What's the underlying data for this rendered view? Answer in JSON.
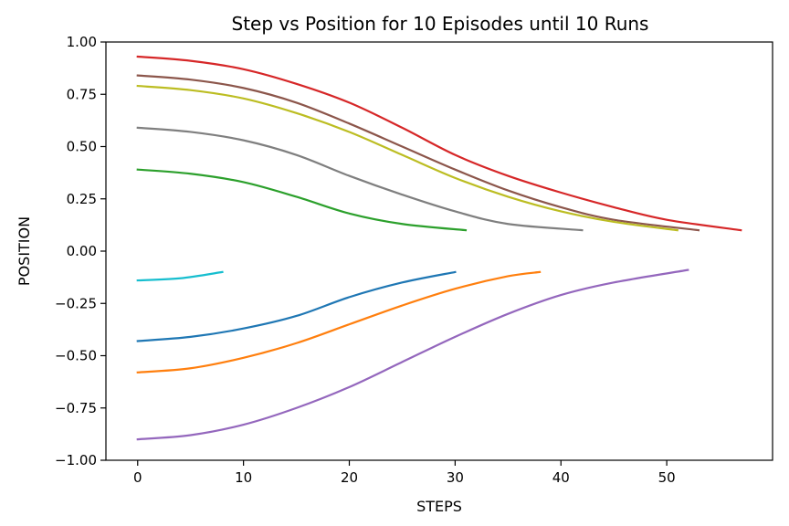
{
  "chart_data": {
    "type": "line",
    "title": "Step vs Position for 10 Episodes until 10 Runs",
    "xlabel": "STEPS",
    "ylabel": "POSITION",
    "xlim": [
      -3,
      60
    ],
    "ylim": [
      -1.0,
      1.0
    ],
    "xticks": [
      0,
      10,
      20,
      30,
      40,
      50
    ],
    "yticks": [
      -1.0,
      -0.75,
      -0.5,
      -0.25,
      0.0,
      0.25,
      0.5,
      0.75,
      1.0
    ],
    "ytick_labels": [
      "−1.00",
      "−0.75",
      "−0.50",
      "−0.25",
      "0.00",
      "0.25",
      "0.50",
      "0.75",
      "1.00"
    ],
    "grid": false,
    "legend": "none",
    "series": [
      {
        "color": "#1f77b4",
        "x": [
          0,
          5,
          10,
          15,
          20,
          25,
          30
        ],
        "y": [
          -0.43,
          -0.41,
          -0.37,
          -0.31,
          -0.22,
          -0.15,
          -0.1
        ]
      },
      {
        "color": "#ff7f0e",
        "x": [
          0,
          5,
          10,
          15,
          20,
          25,
          30,
          35,
          38
        ],
        "y": [
          -0.58,
          -0.56,
          -0.51,
          -0.44,
          -0.35,
          -0.26,
          -0.18,
          -0.12,
          -0.1
        ]
      },
      {
        "color": "#2ca02c",
        "x": [
          0,
          5,
          10,
          15,
          20,
          25,
          31
        ],
        "y": [
          0.39,
          0.37,
          0.33,
          0.26,
          0.18,
          0.13,
          0.1
        ]
      },
      {
        "color": "#d62728",
        "x": [
          0,
          5,
          10,
          15,
          20,
          25,
          30,
          35,
          40,
          45,
          50,
          57
        ],
        "y": [
          0.93,
          0.91,
          0.87,
          0.8,
          0.71,
          0.59,
          0.46,
          0.36,
          0.28,
          0.21,
          0.15,
          0.1
        ]
      },
      {
        "color": "#9467bd",
        "x": [
          0,
          5,
          10,
          15,
          20,
          25,
          30,
          35,
          40,
          45,
          52
        ],
        "y": [
          -0.9,
          -0.88,
          -0.83,
          -0.75,
          -0.65,
          -0.53,
          -0.41,
          -0.3,
          -0.21,
          -0.15,
          -0.09
        ]
      },
      {
        "color": "#8c564b",
        "x": [
          0,
          5,
          10,
          15,
          20,
          25,
          30,
          35,
          40,
          45,
          53
        ],
        "y": [
          0.84,
          0.82,
          0.78,
          0.71,
          0.61,
          0.5,
          0.39,
          0.29,
          0.21,
          0.15,
          0.1
        ]
      },
      {
        "color": "#17becf",
        "x": [
          0,
          4,
          8
        ],
        "y": [
          -0.14,
          -0.13,
          -0.1
        ]
      },
      {
        "color": "#7f7f7f",
        "x": [
          0,
          5,
          10,
          15,
          20,
          25,
          30,
          35,
          42
        ],
        "y": [
          0.59,
          0.57,
          0.53,
          0.46,
          0.36,
          0.27,
          0.19,
          0.13,
          0.1
        ]
      },
      {
        "color": "#bcbd22",
        "x": [
          0,
          5,
          10,
          15,
          20,
          25,
          30,
          35,
          40,
          45,
          51
        ],
        "y": [
          0.79,
          0.77,
          0.73,
          0.66,
          0.57,
          0.46,
          0.35,
          0.26,
          0.19,
          0.14,
          0.1
        ]
      }
    ]
  }
}
